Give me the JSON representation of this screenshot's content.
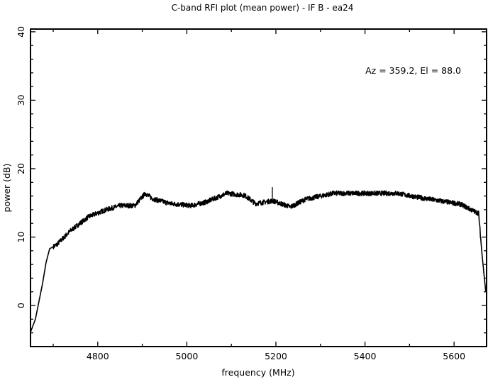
{
  "chart_data": {
    "type": "line",
    "title": "C-band RFI plot (mean power) - IF B - ea24",
    "xlabel": "frequency (MHz)",
    "ylabel": "power (dB)",
    "annotation": "Az = 359.2, El = 88.0",
    "xlim": [
      4649,
      5673
    ],
    "ylim": [
      -6,
      40.4
    ],
    "xticks": [
      4800,
      5000,
      5200,
      5400,
      5600
    ],
    "xtick_labels": [
      "4800",
      "5000",
      "5200",
      "5400",
      "5600"
    ],
    "x_minor_step": 100,
    "yticks": [
      0,
      10,
      20,
      30,
      40
    ],
    "ytick_labels": [
      "0",
      "10",
      "20",
      "30",
      "40"
    ],
    "y_minor_step": 2,
    "grid": false,
    "series": [
      {
        "name": "mean power",
        "color": "#000000",
        "x": [
          4649,
          4660,
          4676,
          4684,
          4692,
          4708,
          4740,
          4780,
          4819,
          4851,
          4883,
          4907,
          4923,
          4963,
          5010,
          5042,
          5090,
          5130,
          5154,
          5193,
          5233,
          5265,
          5329,
          5377,
          5424,
          5472,
          5520,
          5568,
          5615,
          5647,
          5655,
          5663,
          5671
        ],
        "y": [
          -3.9,
          -2.0,
          3.2,
          6.3,
          8.3,
          8.9,
          11.0,
          13.0,
          14.0,
          14.6,
          14.6,
          16.4,
          15.6,
          14.9,
          14.6,
          15.1,
          16.4,
          16.1,
          14.9,
          15.3,
          14.4,
          15.5,
          16.4,
          16.4,
          16.4,
          16.4,
          15.8,
          15.3,
          14.8,
          13.7,
          13.5,
          7.3,
          2.1
        ]
      }
    ],
    "spikes": [
      {
        "x": 5192,
        "y": 17.3
      }
    ]
  }
}
